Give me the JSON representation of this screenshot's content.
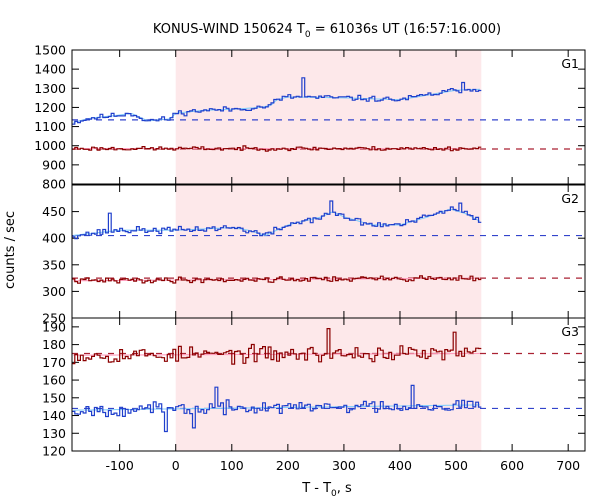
{
  "chart_data": {
    "type": "line",
    "title": {
      "prefix": "KONUS-WIND 150624 T",
      "subscript": "0",
      "suffix": " = 61036s UT (16:57:16.000)"
    },
    "xlabel": {
      "prefix": "T - T",
      "subscript": "0",
      "suffix": ", s"
    },
    "ylabel": "counts / sec",
    "xlim": [
      -185,
      730
    ],
    "x_ticks": [
      -100,
      0,
      100,
      200,
      300,
      400,
      500,
      600,
      700
    ],
    "shaded_interval": [
      0,
      545
    ],
    "shade_color": "#fde8ea",
    "step_end": 545,
    "colors": {
      "hard": "#8b0000",
      "soft": "#1f3fcc",
      "soft_light": "#87cefa",
      "hard_light": "#ff9fbf",
      "bg_soft": "#3344cc",
      "bg_hard": "#aa2233"
    },
    "panels": [
      {
        "label": "G1",
        "ylim": [
          800,
          1500
        ],
        "y_ticks": [
          800,
          900,
          1000,
          1100,
          1200,
          1300,
          1400,
          1500
        ],
        "y_tick_labels": [
          "800",
          "900",
          "1000",
          "1100",
          "1200",
          "1300",
          "1400",
          "1500"
        ],
        "background": {
          "soft": 1135,
          "hard": 983
        },
        "series": [
          {
            "name": "",
            "color_key": "soft",
            "fit_color_key": "soft_light",
            "knots": [
              [
                -185,
                1120
              ],
              [
                -150,
                1145
              ],
              [
                -100,
                1160
              ],
              [
                -80,
                1170
              ],
              [
                -50,
                1130
              ],
              [
                -10,
                1140
              ],
              [
                0,
                1170
              ],
              [
                50,
                1185
              ],
              [
                100,
                1190
              ],
              [
                150,
                1200
              ],
              [
                170,
                1210
              ],
              [
                180,
                1240
              ],
              [
                200,
                1255
              ],
              [
                300,
                1250
              ],
              [
                350,
                1245
              ],
              [
                400,
                1240
              ],
              [
                430,
                1255
              ],
              [
                470,
                1275
              ],
              [
                500,
                1290
              ],
              [
                545,
                1295
              ]
            ],
            "noise": 14,
            "seed": 11,
            "spikes": [
              [
                225,
                1355
              ],
              [
                510,
                1330
              ]
            ]
          },
          {
            "name": "",
            "color_key": "hard",
            "fit_color_key": "hard_light",
            "knots": [
              [
                -185,
                985
              ],
              [
                545,
                985
              ]
            ],
            "noise": 10,
            "seed": 23,
            "spikes": []
          }
        ]
      },
      {
        "label": "G2",
        "ylim": [
          250,
          500
        ],
        "y_ticks": [
          250,
          300,
          350,
          400,
          450
        ],
        "y_tick_labels": [
          "250",
          "300",
          "350",
          "400",
          "450"
        ],
        "background": {
          "soft": 405,
          "hard": 325
        },
        "series": [
          {
            "name": "",
            "color_key": "soft",
            "fit_color_key": "soft_light",
            "knots": [
              [
                -185,
                405
              ],
              [
                -100,
                415
              ],
              [
                0,
                415
              ],
              [
                100,
                420
              ],
              [
                130,
                415
              ],
              [
                160,
                405
              ],
              [
                200,
                425
              ],
              [
                260,
                440
              ],
              [
                280,
                450
              ],
              [
                300,
                440
              ],
              [
                350,
                425
              ],
              [
                400,
                425
              ],
              [
                450,
                440
              ],
              [
                490,
                455
              ],
              [
                520,
                445
              ],
              [
                545,
                430
              ]
            ],
            "noise": 6,
            "seed": 37,
            "spikes": [
              [
                -120,
                447
              ],
              [
                275,
                470
              ],
              [
                505,
                466
              ]
            ]
          },
          {
            "name": "",
            "color_key": "hard",
            "fit_color_key": "hard_light",
            "knots": [
              [
                -185,
                320
              ],
              [
                545,
                325
              ]
            ],
            "noise": 5,
            "seed": 41,
            "spikes": []
          }
        ]
      },
      {
        "label": "G3",
        "ylim": [
          120,
          195
        ],
        "y_ticks": [
          120,
          130,
          140,
          150,
          160,
          170,
          180,
          190
        ],
        "y_tick_labels": [
          "120",
          "130",
          "140",
          "150",
          "160",
          "170",
          "180",
          "190"
        ],
        "background": {
          "soft": 144,
          "hard": 175
        },
        "series": [
          {
            "name": "",
            "color_key": "hard",
            "fit_color_key": "hard_light",
            "knots": [
              [
                -185,
                174
              ],
              [
                545,
                175
              ]
            ],
            "noise": 4.5,
            "seed": 53,
            "spikes": [
              [
                270,
                189
              ],
              [
                495,
                187
              ]
            ]
          },
          {
            "name": "",
            "color_key": "soft",
            "fit_color_key": "soft_light",
            "knots": [
              [
                -185,
                143
              ],
              [
                545,
                146
              ]
            ],
            "noise": 3.5,
            "seed": 67,
            "spikes": [
              [
                30,
                133
              ],
              [
                -20,
                131
              ],
              [
                70,
                156
              ],
              [
                420,
                157
              ]
            ]
          }
        ]
      }
    ]
  }
}
